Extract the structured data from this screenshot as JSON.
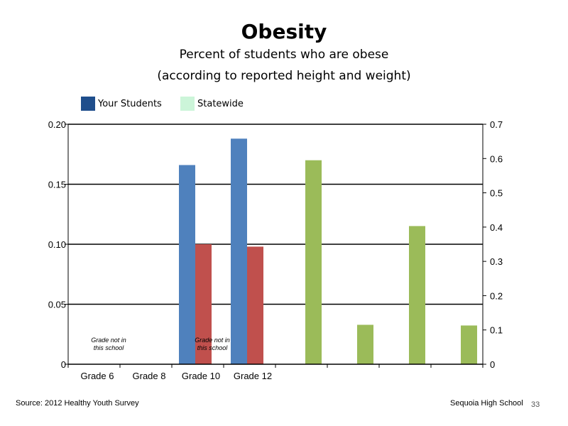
{
  "title": "Obesity",
  "subtitle_line1": "Percent of students who are obese",
  "subtitle_line2": "(according to reported height and weight)",
  "legend": [
    {
      "label": "Your Students",
      "color": "#1F4E8C"
    },
    {
      "label": "Statewide",
      "color": "#CCF5D9"
    }
  ],
  "footer": {
    "source": "Source: 2012 Healthy Youth Survey",
    "school": "Sequoia High School",
    "page": "33"
  },
  "chart_data": {
    "type": "bar",
    "categories": [
      "Grade 6",
      "Grade 8",
      "Grade 10",
      "Grade 12"
    ],
    "left_axis": {
      "ylim": [
        0,
        0.2
      ],
      "ticks": [
        "0",
        "0.05",
        "0.10",
        "0.15",
        "0.20"
      ],
      "tick_values": [
        0,
        0.05,
        0.1,
        0.15,
        0.2
      ]
    },
    "right_axis": {
      "ylim": [
        0,
        0.7
      ],
      "ticks": [
        "0",
        "0.1",
        "0.2",
        "0.3",
        "0.4",
        "0.5",
        "0.6",
        "0.7"
      ],
      "tick_values": [
        0,
        0.1,
        0.2,
        0.3,
        0.4,
        0.5,
        0.6,
        0.7
      ]
    },
    "series": [
      {
        "color": "#4F81BD",
        "axis": "left",
        "values": [
          null,
          null,
          0.166,
          0.188
        ]
      },
      {
        "color": "#C0504D",
        "axis": "left",
        "values": [
          null,
          null,
          0.1,
          0.098
        ]
      },
      {
        "color": "#9BBB59",
        "axis": "right",
        "values": [
          0.595,
          0.115,
          0.403,
          0.113
        ]
      }
    ],
    "annotations": [
      {
        "category": "Grade 6",
        "lines": [
          "Grade not in",
          "this school"
        ]
      },
      {
        "category": "Grade 10",
        "lines": [
          "Grade not in",
          "this school"
        ]
      }
    ],
    "gridlines": true
  }
}
